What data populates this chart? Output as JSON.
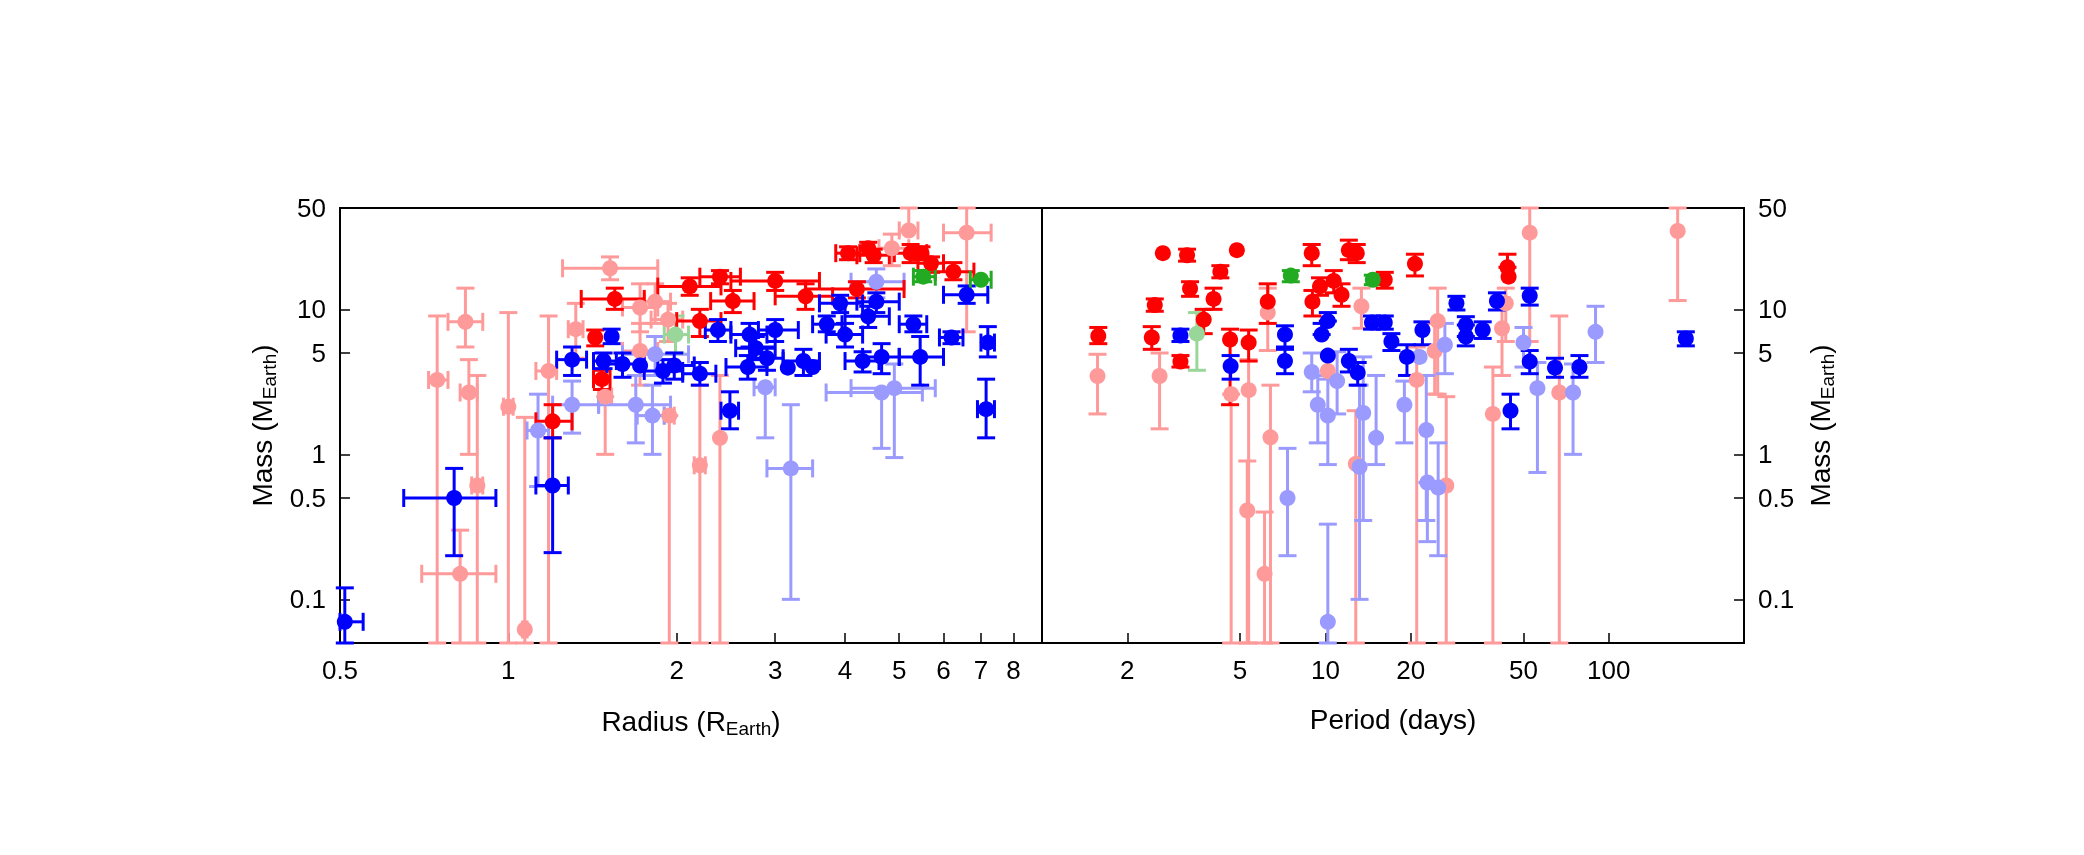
{
  "chart_data": [
    {
      "type": "scatter",
      "xlabel": "Radius (R$_{Earth}$)",
      "ylabel": "Mass (M$_{Earth}$)",
      "log": "xy",
      "grid": false,
      "marker": "circle",
      "xlim": [
        0.5,
        9
      ],
      "xticks": [
        0.5,
        1,
        2,
        3,
        4,
        5,
        6,
        7,
        8
      ],
      "ylim": [
        0.05,
        50
      ],
      "yticks": [
        0.1,
        0.5,
        1,
        5,
        10,
        50
      ],
      "series": [
        {
          "color": "#ff9a9a",
          "x": [
            1.52,
            0.838,
            0.746,
            0.85,
            0.88,
            0.82,
            1.0,
            1.07,
            1.18,
            1.32,
            1.72,
            1.83,
            1.93,
            1.72,
            1.49,
            1.94,
            2.2,
            2.39,
            5.2,
            6.6,
            4.85
          ],
          "values": [
            19.2,
            8.2,
            3.26,
            2.67,
            0.61,
            0.15,
            2.13,
            0.062,
            3.76,
            7.3,
            10.3,
            11.3,
            8.5,
            5.16,
            2.5,
            1.85,
            0.84,
            1.3,
            35,
            33.8,
            26.4
          ],
          "errors": [
            [
              16,
              23
            ],
            [
              5.5,
              14
            ],
            [
              0.05,
              9
            ],
            [
              1.0,
              4.5
            ],
            [
              0.05,
              3.5
            ],
            [
              0.05,
              0.3
            ],
            [
              0.05,
              9.5
            ],
            [
              0.05,
              1.8
            ],
            [
              0.05,
              9
            ],
            [
              4.6,
              11
            ],
            [
              7,
              15
            ],
            [
              8,
              15
            ],
            [
              6,
              11
            ],
            [
              3,
              8
            ],
            [
              1.0,
              2.5
            ],
            [
              0.05,
              1.85
            ],
            [
              0.05,
              3
            ],
            [
              0.05,
              3.5
            ],
            [
              35,
              50
            ],
            [
              7,
              50
            ],
            [
              20,
              33
            ]
          ],
          "xerrors": [
            [
              1.25,
              1.85
            ],
            [
              0.78,
              0.9
            ],
            [
              0.72,
              0.78
            ],
            [
              0.82,
              0.88
            ],
            [
              0.86,
              0.9
            ],
            [
              0.7,
              0.95
            ],
            [
              0.98,
              1.02
            ],
            [
              1.06,
              1.08
            ],
            [
              1.12,
              1.22
            ],
            [
              1.28,
              1.36
            ],
            [
              1.6,
              1.85
            ],
            [
              1.75,
              1.95
            ],
            [
              1.8,
              2.05
            ],
            [
              1.6,
              1.85
            ],
            [
              1.45,
              1.53
            ],
            [
              1.9,
              1.98
            ],
            [
              2.15,
              2.25
            ],
            null,
            [
              5.0,
              5.4
            ],
            [
              6.0,
              7.3
            ],
            [
              4.6,
              5.2
            ]
          ]
        },
        {
          "color": "#9a9aff",
          "x": [
            1.13,
            1.3,
            1.69,
            1.81,
            2.88,
            3.2,
            4.65,
            4.9,
            1.83,
            4.55
          ],
          "values": [
            1.46,
            2.2,
            2.2,
            1.85,
            2.9,
            0.8,
            2.67,
            2.86,
            4.9,
            15.5
          ],
          "errors": [
            [
              0.6,
              2.6
            ],
            [
              1.4,
              3.2
            ],
            [
              1.2,
              3.5
            ],
            [
              1.0,
              3.0
            ],
            [
              1.3,
              2.9
            ],
            [
              0.1,
              2.2
            ],
            [
              1.1,
              2.67
            ],
            [
              0.95,
              4.2
            ],
            [
              3.5,
              6.5
            ],
            [
              12,
              19
            ]
          ],
          "xerrors": [
            [
              1.08,
              1.18
            ],
            [
              1.2,
              1.45
            ],
            [
              1.45,
              1.95
            ],
            [
              1.7,
              1.9
            ],
            [
              2.75,
              3.0
            ],
            [
              2.9,
              3.5
            ],
            [
              3.7,
              5.5
            ],
            [
              4.1,
              5.8
            ],
            [
              1.6,
              2.1
            ],
            [
              4.1,
              5.1
            ]
          ]
        },
        {
          "color": "#99d699",
          "x": [
            1.99
          ],
          "values": [
            6.7
          ],
          "errors": [
            [
              5,
              9
            ]
          ],
          "xerrors": [
            [
              1.9,
              2.1
            ]
          ]
        },
        {
          "color": "#ff0000",
          "x": [
            2.11,
            1.55,
            1.2,
            1.47,
            1.43,
            2.39,
            2.52,
            3.0,
            3.4,
            4.05,
            4.4,
            4.5,
            5.24,
            5.48,
            5.7,
            6.25,
            4.2,
            2.2
          ],
          "values": [
            14.4,
            11.8,
            1.69,
            3.3,
            6.4,
            16.8,
            11.4,
            15.7,
            12.3,
            24.4,
            26.4,
            23.6,
            24.4,
            24.4,
            20.8,
            18.2,
            13.8,
            8.3
          ],
          "errors": [
            [
              12.5,
              16.5
            ],
            [
              10,
              14
            ],
            [
              1.3,
              2.2
            ],
            [
              2.8,
              3.8
            ],
            [
              5.6,
              7.2
            ],
            [
              15,
              18.5
            ],
            [
              9.5,
              13.5
            ],
            [
              13.5,
              18
            ],
            [
              10,
              15
            ],
            [
              22,
              27
            ],
            [
              24,
              29
            ],
            [
              21,
              26
            ],
            [
              21,
              28
            ],
            [
              22,
              27
            ],
            [
              18,
              23
            ],
            [
              16,
              21
            ],
            [
              12,
              15.5
            ],
            [
              6.5,
              10
            ]
          ],
          "xerrors": [
            [
              1.85,
              2.4
            ],
            [
              1.35,
              1.75
            ],
            [
              1.12,
              1.3
            ],
            [
              1.42,
              1.52
            ],
            null,
            [
              2.2,
              2.6
            ],
            [
              2.3,
              2.75
            ],
            [
              2.5,
              3.6
            ],
            [
              3.0,
              3.8
            ],
            [
              3.85,
              4.25
            ],
            null,
            [
              4.2,
              4.8
            ],
            [
              4.9,
              5.6
            ],
            null,
            [
              5.4,
              6.0
            ],
            [
              5.8,
              6.8
            ],
            [
              3.4,
              5.1
            ],
            [
              2.0,
              2.4
            ]
          ]
        },
        {
          "color": "#0000ff",
          "x": [
            0.51,
            0.8,
            1.2,
            1.3,
            1.53,
            1.48,
            1.6,
            1.72,
            1.89,
            1.98,
            2.2,
            2.37,
            2.7,
            2.77,
            2.9,
            2.68,
            3.0,
            3.16,
            3.37,
            3.5,
            3.71,
            3.92,
            4.0,
            4.4,
            4.55,
            4.3,
            4.65,
            5.3,
            5.45,
            6.2,
            6.6,
            7.2,
            7.15,
            2.49
          ],
          "values": [
            0.07,
            0.5,
            0.61,
            4.5,
            6.5,
            4.4,
            4.2,
            4.1,
            3.76,
            4.1,
            3.6,
            7.2,
            6.7,
            5.4,
            4.6,
            4.0,
            7.2,
            3.96,
            4.4,
            4.0,
            7.9,
            11.0,
            6.7,
            8.95,
            11.3,
            4.4,
            4.7,
            7.9,
            4.7,
            6.4,
            12.6,
            5.9,
            2.05,
            2.0
          ],
          "errors": [
            [
              0.05,
              0.12
            ],
            [
              0.2,
              0.8
            ],
            [
              0.21,
              1.3
            ],
            [
              3.5,
              5.5
            ],
            [
              5.8,
              7.3
            ],
            [
              3.9,
              5
            ],
            [
              3.4,
              5
            ],
            null,
            [
              3.1,
              4.5
            ],
            [
              3.3,
              5
            ],
            [
              3,
              4.3
            ],
            [
              6,
              8.5
            ],
            [
              5.5,
              8
            ],
            [
              4.5,
              6.5
            ],
            [
              3.8,
              5.5
            ],
            [
              3.3,
              4.8
            ],
            [
              6,
              8.5
            ],
            null,
            [
              3.5,
              5.3
            ],
            null,
            [
              7,
              9
            ],
            [
              9.5,
              12.5
            ],
            [
              5.5,
              8
            ],
            [
              7.5,
              10.5
            ],
            [
              9.5,
              13
            ],
            [
              3.7,
              5.1
            ],
            [
              3.6,
              5.8
            ],
            [
              7,
              9
            ],
            [
              3,
              6.5
            ],
            [
              5.8,
              7
            ],
            [
              11,
              14.5
            ],
            [
              4.7,
              7.6
            ],
            [
              1.3,
              3.3
            ],
            [
              1.5,
              2.7
            ]
          ],
          "xerrors": [
            [
              0.5,
              0.55
            ],
            [
              0.65,
              0.95
            ],
            [
              1.12,
              1.28
            ],
            [
              1.22,
              1.38
            ],
            null,
            [
              1.42,
              1.56
            ],
            [
              1.5,
              1.75
            ],
            null,
            [
              1.75,
              2.05
            ],
            [
              1.85,
              2.15
            ],
            [
              2.05,
              2.35
            ],
            [
              2.25,
              2.5
            ],
            [
              2.5,
              2.9
            ],
            [
              2.55,
              3.0
            ],
            [
              2.7,
              3.1
            ],
            [
              2.45,
              2.9
            ],
            [
              2.8,
              3.3
            ],
            null,
            [
              3.1,
              3.6
            ],
            null,
            [
              3.5,
              3.95
            ],
            [
              3.6,
              4.3
            ],
            [
              3.7,
              4.3
            ],
            [
              4.0,
              4.8
            ],
            [
              4.2,
              5.0
            ],
            [
              4.0,
              4.6
            ],
            [
              4.3,
              5.0
            ],
            [
              5.0,
              5.6
            ],
            [
              5.0,
              6.0
            ],
            [
              5.9,
              6.5
            ],
            [
              6.0,
              7.2
            ],
            [
              7.0,
              7.4
            ],
            [
              6.9,
              7.4
            ],
            [
              2.4,
              2.58
            ]
          ]
        },
        {
          "color": "#22aa22",
          "x": [
            5.52,
            7.0
          ],
          "values": [
            16.8,
            16.0
          ],
          "errors": [
            [
              15.5,
              18.5
            ],
            null
          ],
          "xerrors": [
            [
              5.3,
              5.8
            ],
            [
              6.7,
              7.3
            ]
          ]
        }
      ]
    },
    {
      "type": "scatter",
      "xlabel": "Period (days)",
      "ylabel": "Mass (M$_{Earth}$)",
      "log": "xy",
      "grid": false,
      "marker": "circle",
      "xlim": [
        1,
        300
      ],
      "xticks": [
        2,
        5,
        10,
        20,
        50,
        100
      ],
      "ylim": [
        0.05,
        50
      ],
      "yticks": [
        0.1,
        0.5,
        1,
        5,
        10,
        50
      ],
      "series": [
        {
          "color": "#ff9a9a",
          "x": [
            1.57,
            2.6,
            4.65,
            5.36,
            5.3,
            6.4,
            6.1,
            6.26,
            10.2,
            12.8,
            13.4,
            21,
            24.3,
            24.9,
            26.7,
            39,
            42,
            43.3,
            52.6,
            66.9,
            175
          ],
          "values": [
            3.47,
            3.47,
            2.6,
            2.77,
            0.41,
            1.31,
            0.15,
            9.5,
            3.76,
            0.86,
            10.5,
            3.26,
            5.16,
            8.3,
            0.61,
            1.9,
            7.4,
            11.0,
            33.8,
            2.67,
            34.7
          ],
          "errors": [
            [
              1.9,
              4.9
            ],
            [
              1.5,
              5
            ],
            [
              0.05,
              2.6
            ],
            [
              0.05,
              4.5
            ],
            [
              0.05,
              0.9
            ],
            [
              0.05,
              3
            ],
            [
              0.05,
              0.4
            ],
            [
              5.2,
              14
            ],
            null,
            [
              0.05,
              2
            ],
            [
              7.4,
              14
            ],
            [
              0.05,
              5.5
            ],
            [
              2.6,
              8
            ],
            [
              2.6,
              14
            ],
            [
              0.05,
              2.5
            ],
            [
              0.05,
              4
            ],
            [
              3.5,
              12
            ],
            [
              6,
              14
            ],
            [
              6,
              50
            ],
            [
              0.05,
              9
            ],
            [
              11.5,
              50
            ]
          ]
        },
        {
          "color": "#9a9aff",
          "x": [
            7.35,
            9.4,
            10.2,
            10.2,
            13.6,
            13.2,
            15.1,
            8.95,
            11.0,
            19,
            21.5,
            22.7,
            22.9,
            25,
            26.4,
            50,
            56,
            74.8,
            89.8
          ],
          "values": [
            0.5,
            2.2,
            1.85,
            0.07,
            1.93,
            0.82,
            1.3,
            3.7,
            3.2,
            2.2,
            4.7,
            1.47,
            0.64,
            0.59,
            5.7,
            5.9,
            2.86,
            2.67,
            7.0
          ],
          "errors": [
            [
              0.2,
              1.1
            ],
            [
              1.2,
              3.5
            ],
            [
              0.85,
              3.3
            ],
            [
              0.05,
              0.33
            ],
            [
              0.35,
              4.7
            ],
            [
              0.1,
              3
            ],
            [
              0.85,
              3.5
            ],
            [
              2.7,
              5
            ],
            [
              1.9,
              5.1
            ],
            [
              1.2,
              3.2
            ],
            null,
            [
              0.35,
              3.5
            ],
            [
              0.25,
              0.64
            ],
            [
              0.2,
              1.2
            ],
            [
              3.6,
              8
            ],
            [
              4,
              7.5
            ],
            [
              0.75,
              4.3
            ],
            [
              1.0,
              4.2
            ],
            [
              4.3,
              10.5
            ]
          ]
        },
        {
          "color": "#99d699",
          "x": [
            3.52
          ],
          "values": [
            6.8
          ],
          "errors": [
            [
              3.8,
              9.5
            ]
          ]
        },
        {
          "color": "#ff0000",
          "x": [
            1.58,
            2.67,
            3.25,
            2.5,
            2.44,
            3.08,
            3.33,
            4.26,
            4.87,
            4.61,
            4.03,
            3.72,
            5.36,
            6.26,
            8.95,
            9.57,
            10.7,
            12.1,
            12.9,
            11.4,
            9.0,
            16.2,
            20.7,
            43.9,
            44.3
          ],
          "values": [
            6.55,
            24.4,
            23.6,
            10.7,
            6.4,
            4.36,
            13.9,
            18.2,
            25.6,
            6.2,
            11.8,
            8.5,
            5.9,
            11.3,
            24.4,
            14.4,
            15.7,
            25.6,
            24.4,
            12.6,
            11.3,
            16,
            20.6,
            19.5,
            16.8
          ],
          "errors": [
            [
              5.8,
              7.5
            ],
            null,
            [
              21.5,
              26
            ],
            [
              9.7,
              11.8
            ],
            [
              5.3,
              7.6
            ],
            [
              4,
              4.8
            ],
            [
              12.3,
              15.5
            ],
            [
              16.5,
              20
            ],
            null,
            [
              2.2,
              7.3
            ],
            [
              10,
              14
            ],
            [
              6.8,
              10
            ],
            [
              4.4,
              7.2
            ],
            [
              8,
              15
            ],
            [
              20,
              28
            ],
            [
              12.5,
              16.5
            ],
            [
              13,
              18.5
            ],
            [
              22,
              30
            ],
            [
              21,
              28
            ],
            [
              10.5,
              15
            ],
            [
              9,
              13.5
            ],
            [
              14,
              18
            ],
            [
              17,
              24
            ],
            [
              19.5,
              24
            ],
            null
          ]
        },
        {
          "color": "#0000ff",
          "x": [
            3.08,
            4.63,
            7.2,
            7.2,
            10.2,
            9.7,
            10.2,
            12.1,
            13.0,
            14.6,
            16.2,
            17.1,
            19.4,
            22.0,
            29,
            31.3,
            31.3,
            35.9,
            40.3,
            45,
            52.6,
            52.6,
            64.6,
            78.8,
            187
          ],
          "values": [
            6.6,
            4.06,
            6.7,
            4.4,
            8.3,
            6.7,
            4.8,
            4.4,
            3.66,
            8.1,
            8.1,
            6.0,
            4.7,
            7.2,
            11.0,
            7.8,
            6.5,
            7.2,
            11.4,
            2.0,
            12.4,
            4.36,
            3.96,
            4.0,
            6.3
          ],
          "errors": [
            [
              6,
              7.3
            ],
            [
              3.3,
              4.8
            ],
            [
              5.5,
              7.7
            ],
            [
              3.6,
              5.3
            ],
            [
              8.3,
              9.5
            ],
            [
              6.7,
              8
            ],
            null,
            [
              3.7,
              5.3
            ],
            [
              3,
              4.3
            ],
            [
              7.3,
              9
            ],
            [
              7.3,
              9
            ],
            [
              5.2,
              6.8
            ],
            [
              3.5,
              5.7
            ],
            [
              5.7,
              8.2
            ],
            [
              9.9,
              12.3
            ],
            [
              7.8,
              8.9
            ],
            [
              5.6,
              6.5
            ],
            [
              6.3,
              8.2
            ],
            [
              9.9,
              13
            ],
            [
              1.5,
              2.6
            ],
            [
              10.7,
              14
            ],
            [
              3.6,
              5.2
            ],
            [
              3.4,
              4.6
            ],
            [
              3.4,
              4.8
            ],
            [
              5.6,
              7
            ]
          ]
        },
        {
          "color": "#22aa22",
          "x": [
            7.55,
            14.7
          ],
          "values": [
            17.1,
            16
          ],
          "errors": [
            [
              15.5,
              18.5
            ],
            [
              14.8,
              17.2
            ]
          ]
        }
      ]
    }
  ]
}
